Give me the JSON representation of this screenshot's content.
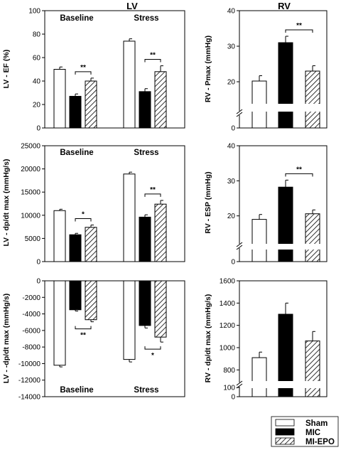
{
  "figure": {
    "left_title": "LV",
    "right_title": "RV"
  },
  "legend": [
    {
      "label": "Sham",
      "fill": "white"
    },
    {
      "label": "MIC",
      "fill": "black"
    },
    {
      "label": "MI-EPO",
      "fill": "hatch"
    }
  ],
  "chart_data": [
    {
      "id": "lv-ef",
      "type": "bar",
      "ylabel": "LV - EF (%)",
      "ylim": [
        0,
        100
      ],
      "yticks": [
        0,
        20,
        40,
        60,
        80,
        100
      ],
      "groups": [
        "Baseline",
        "Stress"
      ],
      "series": [
        {
          "name": "Sham",
          "values": [
            50,
            74
          ],
          "errors": [
            2,
            2
          ]
        },
        {
          "name": "MIC",
          "values": [
            27,
            31
          ],
          "errors": [
            2,
            2.5
          ]
        },
        {
          "name": "MI-EPO",
          "values": [
            40,
            48
          ],
          "errors": [
            2.5,
            5
          ]
        }
      ],
      "significance": [
        {
          "group": "Baseline",
          "label": "**"
        },
        {
          "group": "Stress",
          "label": "**"
        }
      ]
    },
    {
      "id": "rv-pmax",
      "type": "bar",
      "ylabel": "RV - Pmax (mmHg)",
      "ylim": [
        0,
        40
      ],
      "yticks": [
        0,
        20,
        30,
        40
      ],
      "axis_break": true,
      "groups": [
        ""
      ],
      "series": [
        {
          "name": "Sham",
          "values": [
            20.2
          ],
          "errors": [
            1.5
          ]
        },
        {
          "name": "MIC",
          "values": [
            31
          ],
          "errors": [
            1.8
          ]
        },
        {
          "name": "MI-EPO",
          "values": [
            23
          ],
          "errors": [
            1.5
          ]
        }
      ],
      "significance": [
        {
          "group": "",
          "label": "**"
        }
      ]
    },
    {
      "id": "lv-dpdt-max",
      "type": "bar",
      "ylabel": "LV - dp/dt max (mmHg/s)",
      "ylim": [
        0,
        25000
      ],
      "yticks": [
        0,
        5000,
        10000,
        15000,
        20000,
        25000
      ],
      "groups": [
        "Baseline",
        "Stress"
      ],
      "series": [
        {
          "name": "Sham",
          "values": [
            11000,
            18900
          ],
          "errors": [
            300,
            400
          ]
        },
        {
          "name": "MIC",
          "values": [
            5800,
            9600
          ],
          "errors": [
            300,
            500
          ]
        },
        {
          "name": "MI-EPO",
          "values": [
            7400,
            12400
          ],
          "errors": [
            500,
            800
          ]
        }
      ],
      "significance": [
        {
          "group": "Baseline",
          "label": "*"
        },
        {
          "group": "Stress",
          "label": "**"
        }
      ]
    },
    {
      "id": "rv-esp",
      "type": "bar",
      "ylabel": "RV - ESP (mmHg)",
      "ylim": [
        0,
        40
      ],
      "yticks": [
        0,
        20,
        30,
        40
      ],
      "axis_break": true,
      "groups": [
        ""
      ],
      "series": [
        {
          "name": "Sham",
          "values": [
            19
          ],
          "errors": [
            1.4
          ]
        },
        {
          "name": "MIC",
          "values": [
            28.2
          ],
          "errors": [
            2
          ]
        },
        {
          "name": "MI-EPO",
          "values": [
            20.6
          ],
          "errors": [
            1.1
          ]
        }
      ],
      "significance": [
        {
          "group": "",
          "label": "**"
        }
      ]
    },
    {
      "id": "lv-dpdt-min",
      "type": "bar",
      "ylabel": "LV - -dp/dt max (mmHg/s)",
      "ylim": [
        -14000,
        0
      ],
      "yticks": [
        -14000,
        -12000,
        -10000,
        -8000,
        -6000,
        -4000,
        -2000,
        0
      ],
      "groups": [
        "Baseline",
        "Stress"
      ],
      "series": [
        {
          "name": "Sham",
          "values": [
            -10200,
            -9500
          ],
          "errors": [
            200,
            300
          ]
        },
        {
          "name": "MIC",
          "values": [
            -3500,
            -5400
          ],
          "errors": [
            150,
            300
          ]
        },
        {
          "name": "MI-EPO",
          "values": [
            -4700,
            -6800
          ],
          "errors": [
            250,
            600
          ]
        }
      ],
      "significance": [
        {
          "group": "Baseline",
          "label": "**"
        },
        {
          "group": "Stress",
          "label": "*"
        }
      ]
    },
    {
      "id": "rv-dpdt-max",
      "type": "bar",
      "ylabel": "RV - dp/dt max (mmHg/s)",
      "ylim": [
        0,
        1600
      ],
      "yticks": [
        0,
        100,
        800,
        1000,
        1200,
        1400,
        1600
      ],
      "axis_break": true,
      "groups": [
        ""
      ],
      "series": [
        {
          "name": "Sham",
          "values": [
            910
          ],
          "errors": [
            50
          ]
        },
        {
          "name": "MIC",
          "values": [
            1300
          ],
          "errors": [
            100
          ]
        },
        {
          "name": "MI-EPO",
          "values": [
            1060
          ],
          "errors": [
            85
          ]
        }
      ],
      "significance": []
    }
  ]
}
